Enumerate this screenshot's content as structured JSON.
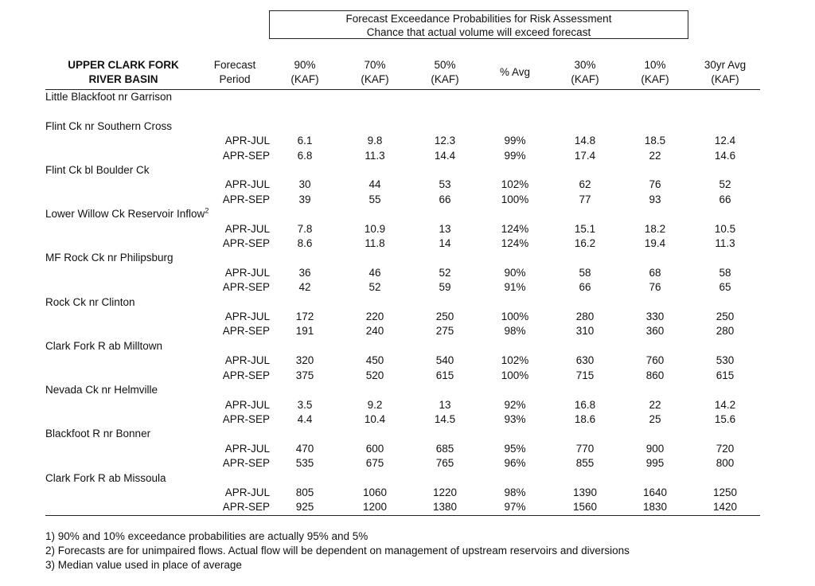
{
  "title": {
    "line1": "Forecast Exceedance Probabilities for Risk Assessment",
    "line2": "Chance that actual volume will exceed forecast"
  },
  "headers": {
    "basin_line1": "UPPER CLARK FORK",
    "basin_line2": "RIVER BASIN",
    "period_line1": "Forecast",
    "period_line2": "Period",
    "p90_line1": "90%",
    "p90_line2": "(KAF)",
    "p70_line1": "70%",
    "p70_line2": "(KAF)",
    "p50_line1": "50%",
    "p50_line2": "(KAF)",
    "pavg": "% Avg",
    "p30_line1": "30%",
    "p30_line2": "(KAF)",
    "p10_line1": "10%",
    "p10_line2": "(KAF)",
    "avg30_line1": "30yr Avg",
    "avg30_line2": "(KAF)"
  },
  "rows": [
    {
      "name": "Little Blackfoot nr Garrison"
    },
    {
      "spacer": true
    },
    {
      "name": "Flint Ck nr Southern Cross"
    },
    {
      "period": "APR-JUL",
      "p90": "6.1",
      "p70": "9.8",
      "p50": "12.3",
      "pavg": "99%",
      "p30": "14.8",
      "p10": "18.5",
      "avg30": "12.4"
    },
    {
      "period": "APR-SEP",
      "p90": "6.8",
      "p70": "11.3",
      "p50": "14.4",
      "pavg": "99%",
      "p30": "17.4",
      "p10": "22",
      "avg30": "14.6"
    },
    {
      "name": "Flint Ck bl Boulder Ck"
    },
    {
      "period": "APR-JUL",
      "p90": "30",
      "p70": "44",
      "p50": "53",
      "pavg": "102%",
      "p30": "62",
      "p10": "76",
      "avg30": "52"
    },
    {
      "period": "APR-SEP",
      "p90": "39",
      "p70": "55",
      "p50": "66",
      "pavg": "100%",
      "p30": "77",
      "p10": "93",
      "avg30": "66"
    },
    {
      "name": "Lower Willow Ck Reservoir Inflow",
      "sup": "2"
    },
    {
      "period": "APR-JUL",
      "p90": "7.8",
      "p70": "10.9",
      "p50": "13",
      "pavg": "124%",
      "p30": "15.1",
      "p10": "18.2",
      "avg30": "10.5"
    },
    {
      "period": "APR-SEP",
      "p90": "8.6",
      "p70": "11.8",
      "p50": "14",
      "pavg": "124%",
      "p30": "16.2",
      "p10": "19.4",
      "avg30": "11.3"
    },
    {
      "name": "MF Rock Ck nr Philipsburg"
    },
    {
      "period": "APR-JUL",
      "p90": "36",
      "p70": "46",
      "p50": "52",
      "pavg": "90%",
      "p30": "58",
      "p10": "68",
      "avg30": "58"
    },
    {
      "period": "APR-SEP",
      "p90": "42",
      "p70": "52",
      "p50": "59",
      "pavg": "91%",
      "p30": "66",
      "p10": "76",
      "avg30": "65"
    },
    {
      "name": "Rock Ck nr Clinton"
    },
    {
      "period": "APR-JUL",
      "p90": "172",
      "p70": "220",
      "p50": "250",
      "pavg": "100%",
      "p30": "280",
      "p10": "330",
      "avg30": "250"
    },
    {
      "period": "APR-SEP",
      "p90": "191",
      "p70": "240",
      "p50": "275",
      "pavg": "98%",
      "p30": "310",
      "p10": "360",
      "avg30": "280"
    },
    {
      "name": "Clark Fork R ab Milltown"
    },
    {
      "period": "APR-JUL",
      "p90": "320",
      "p70": "450",
      "p50": "540",
      "pavg": "102%",
      "p30": "630",
      "p10": "760",
      "avg30": "530"
    },
    {
      "period": "APR-SEP",
      "p90": "375",
      "p70": "520",
      "p50": "615",
      "pavg": "100%",
      "p30": "715",
      "p10": "860",
      "avg30": "615"
    },
    {
      "name": "Nevada Ck nr Helmville"
    },
    {
      "period": "APR-JUL",
      "p90": "3.5",
      "p70": "9.2",
      "p50": "13",
      "pavg": "92%",
      "p30": "16.8",
      "p10": "22",
      "avg30": "14.2"
    },
    {
      "period": "APR-SEP",
      "p90": "4.4",
      "p70": "10.4",
      "p50": "14.5",
      "pavg": "93%",
      "p30": "18.6",
      "p10": "25",
      "avg30": "15.6"
    },
    {
      "name": "Blackfoot R nr Bonner"
    },
    {
      "period": "APR-JUL",
      "p90": "470",
      "p70": "600",
      "p50": "685",
      "pavg": "95%",
      "p30": "770",
      "p10": "900",
      "avg30": "720"
    },
    {
      "period": "APR-SEP",
      "p90": "535",
      "p70": "675",
      "p50": "765",
      "pavg": "96%",
      "p30": "855",
      "p10": "995",
      "avg30": "800"
    },
    {
      "name": "Clark Fork R ab Missoula"
    },
    {
      "period": "APR-JUL",
      "p90": "805",
      "p70": "1060",
      "p50": "1220",
      "pavg": "98%",
      "p30": "1390",
      "p10": "1640",
      "avg30": "1250"
    },
    {
      "period": "APR-SEP",
      "p90": "925",
      "p70": "1200",
      "p50": "1380",
      "pavg": "97%",
      "p30": "1560",
      "p10": "1830",
      "avg30": "1420"
    }
  ],
  "notes": [
    "1) 90% and 10% exceedance probabilities are actually 95% and 5%",
    "2) Forecasts are for unimpaired flows.  Actual flow will be dependent on management of upstream reservoirs and diversions",
    "3) Median value used in place of average"
  ]
}
